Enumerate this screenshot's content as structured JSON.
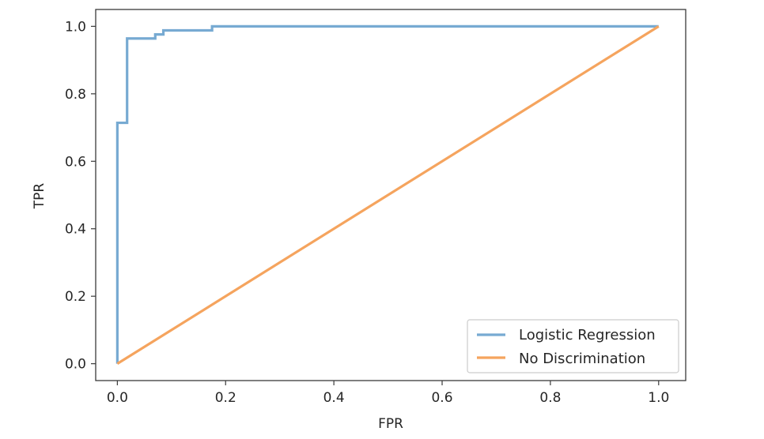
{
  "chart_data": {
    "type": "line",
    "title": "",
    "xlabel": "FPR",
    "ylabel": "TPR",
    "xlim": [
      -0.04,
      1.05
    ],
    "ylim": [
      -0.05,
      1.05
    ],
    "xticks": [
      {
        "value": 0.0,
        "label": "0.0"
      },
      {
        "value": 0.2,
        "label": "0.2"
      },
      {
        "value": 0.4,
        "label": "0.4"
      },
      {
        "value": 0.6,
        "label": "0.6"
      },
      {
        "value": 0.8,
        "label": "0.8"
      },
      {
        "value": 1.0,
        "label": "1.0"
      }
    ],
    "yticks": [
      {
        "value": 0.0,
        "label": "0.0"
      },
      {
        "value": 0.2,
        "label": "0.2"
      },
      {
        "value": 0.4,
        "label": "0.4"
      },
      {
        "value": 0.6,
        "label": "0.6"
      },
      {
        "value": 0.8,
        "label": "0.8"
      },
      {
        "value": 1.0,
        "label": "1.0"
      }
    ],
    "grid": false,
    "legend_position": "lower-right",
    "series": [
      {
        "name": "Logistic Regression",
        "color": "#77aad2",
        "x": [
          0.0,
          0.0,
          0.0,
          0.0,
          0.018,
          0.018,
          0.018,
          0.07,
          0.07,
          0.085,
          0.085,
          0.175,
          0.175,
          1.0
        ],
        "y": [
          0.0,
          0.1,
          0.5,
          0.714,
          0.714,
          0.9,
          0.964,
          0.964,
          0.976,
          0.976,
          0.988,
          0.988,
          1.0,
          1.0
        ]
      },
      {
        "name": "No Discrimination",
        "color": "#f5a45e",
        "x": [
          0.0,
          1.0
        ],
        "y": [
          0.0,
          1.0
        ]
      }
    ]
  }
}
